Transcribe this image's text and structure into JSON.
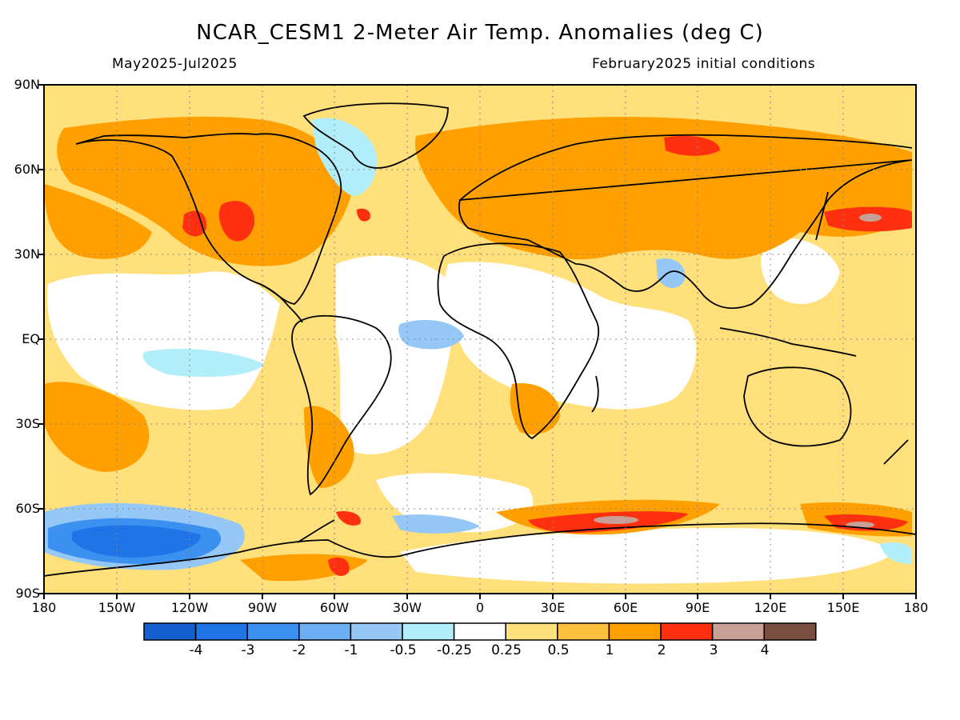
{
  "header": {
    "title": "NCAR_CESM1 2-Meter Air Temp. Anomalies (deg C)",
    "period": "May2025-Jul2025",
    "init": "February2025 initial conditions"
  },
  "map": {
    "lat_ticks": [
      "90N",
      "60N",
      "30N",
      "EQ",
      "30S",
      "60S",
      "90S"
    ],
    "lon_ticks": [
      "180",
      "150W",
      "120W",
      "90W",
      "60W",
      "30W",
      "0",
      "30E",
      "60E",
      "90E",
      "120E",
      "150E",
      "180"
    ],
    "background_color": "#ffe07a"
  },
  "colorbar": {
    "colors": [
      "#1560d0",
      "#1f74e8",
      "#3c90f0",
      "#6caff5",
      "#96c8f7",
      "#b2eefa",
      "#ffffff",
      "#ffe07a",
      "#ffbf3e",
      "#ffa000",
      "#ff3010",
      "#c8a096",
      "#7a4e3e"
    ],
    "labels": [
      "-4",
      "-3",
      "-2",
      "-1",
      "-0.5",
      "-0.25",
      "0.25",
      "0.5",
      "1",
      "2",
      "3",
      "4"
    ]
  }
}
